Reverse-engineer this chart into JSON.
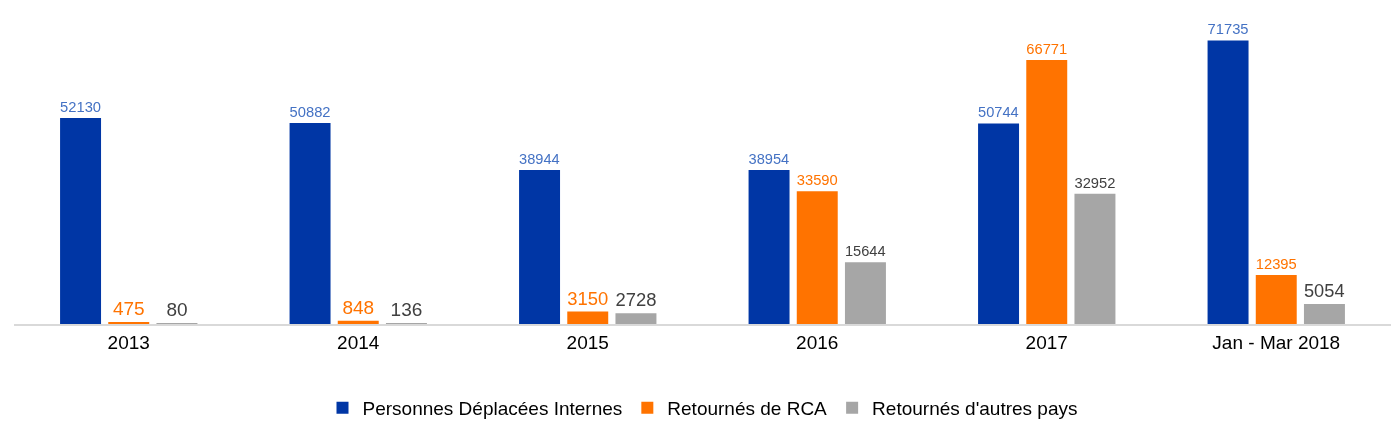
{
  "chart_data": {
    "type": "bar",
    "categories": [
      "2013",
      "2014",
      "2015",
      "2016",
      "2017",
      "Jan - Mar 2018"
    ],
    "series": [
      {
        "name": "Personnes Déplacées Internes",
        "color": "#0036a5",
        "values": [
          52130,
          50882,
          38944,
          38954,
          50744,
          71735
        ]
      },
      {
        "name": "Retournés de RCA",
        "color": "#ff7300",
        "values": [
          475,
          848,
          3150,
          33590,
          66771,
          12395
        ]
      },
      {
        "name": "Retournés d'autres pays",
        "color": "#a6a6a6",
        "values": [
          80,
          136,
          2728,
          15644,
          32952,
          5054
        ]
      }
    ],
    "data_labels": true,
    "legend": "bottom",
    "tick_labels": "x"
  }
}
